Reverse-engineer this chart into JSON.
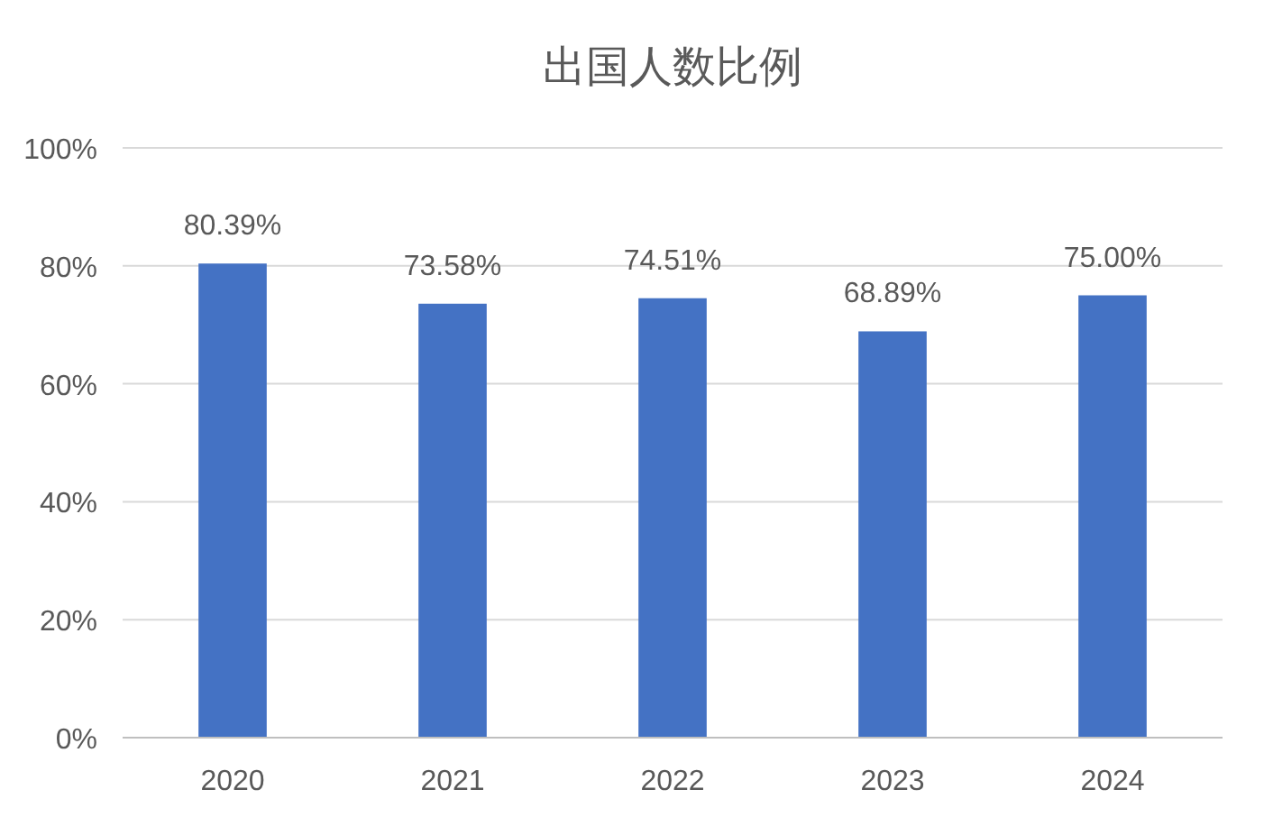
{
  "chart_data": {
    "type": "bar",
    "title": "出国人数比例",
    "categories": [
      "2020",
      "2021",
      "2022",
      "2023",
      "2024"
    ],
    "values": [
      80.39,
      73.58,
      74.51,
      68.89,
      75.0
    ],
    "value_labels": [
      "80.39%",
      "73.58%",
      "74.51%",
      "68.89%",
      "75.00%"
    ],
    "color": "#4472c4",
    "ylim": [
      0,
      100
    ],
    "yticks": [
      {
        "value": 0,
        "label": "0%"
      },
      {
        "value": 20,
        "label": "20%"
      },
      {
        "value": 40,
        "label": "40%"
      },
      {
        "value": 60,
        "label": "60%"
      },
      {
        "value": 80,
        "label": "80%"
      },
      {
        "value": 100,
        "label": "100%"
      }
    ],
    "grid": "y"
  }
}
